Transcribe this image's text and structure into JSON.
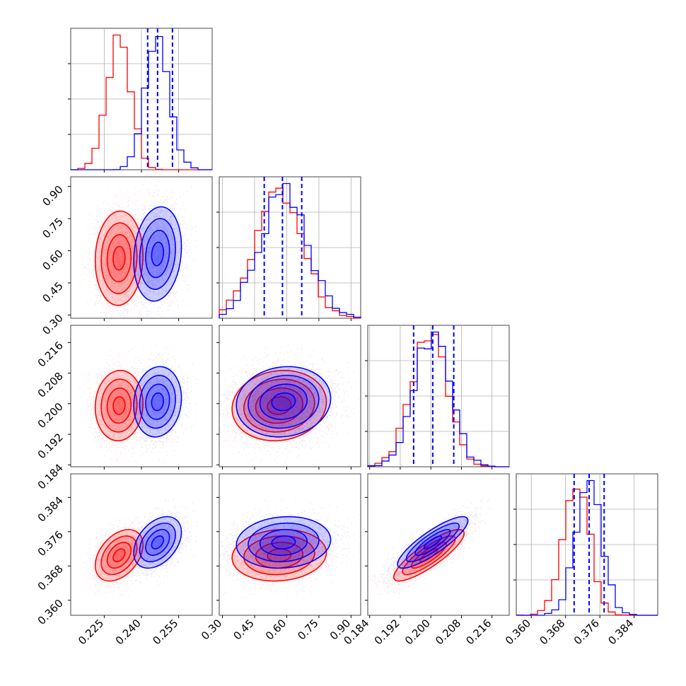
{
  "colors": {
    "series_a": "#ff0000",
    "series_b": "#0000ff",
    "grid": "#b0b0b0",
    "frame": "#444444"
  },
  "chart_data": {
    "type": "corner",
    "grid": true,
    "parameters": [
      {
        "xlim": [
          0.2115,
          0.2685
        ],
        "ylim": null,
        "ticks": [
          0.225,
          0.24,
          0.255
        ],
        "tick_labels": [
          "0.225",
          "0.240",
          "0.255"
        ]
      },
      {
        "xlim": [
          0.285,
          0.945
        ],
        "ylim": [
          0.285,
          0.945
        ],
        "ticks": [
          0.3,
          0.45,
          0.6,
          0.75,
          0.9
        ],
        "tick_labels": [
          "0.30",
          "0.45",
          "0.60",
          "0.75",
          "0.90"
        ]
      },
      {
        "xlim": [
          0.1835,
          0.2205
        ],
        "ylim": [
          0.1835,
          0.2205
        ],
        "ticks": [
          0.184,
          0.192,
          0.2,
          0.208,
          0.216
        ],
        "tick_labels": [
          "0.184",
          "0.192",
          "0.200",
          "0.208",
          "0.216"
        ]
      },
      {
        "xlim": [
          0.3565,
          0.3895
        ],
        "ylim": [
          0.3565,
          0.3895
        ],
        "ticks": [
          0.36,
          0.368,
          0.376,
          0.384
        ],
        "tick_labels": [
          "0.360",
          "0.368",
          "0.376",
          "0.384"
        ]
      }
    ],
    "series": [
      {
        "color": "#ff0000",
        "means": [
          0.231,
          0.565,
          0.1995,
          0.3705
        ],
        "sds": [
          0.0048,
          0.11,
          0.0046,
          0.003
        ],
        "corr": [
          [
            0,
            1,
            0.05
          ],
          [
            0,
            2,
            0.05
          ],
          [
            0,
            3,
            0.4
          ],
          [
            1,
            2,
            0.1
          ],
          [
            1,
            3,
            0.1
          ],
          [
            2,
            3,
            0.85
          ]
        ],
        "quantiles": null
      },
      {
        "color": "#0000ff",
        "means": [
          0.2465,
          0.585,
          0.2005,
          0.3735
        ],
        "sds": [
          0.0048,
          0.11,
          0.0046,
          0.003
        ],
        "corr": [
          [
            0,
            1,
            0.15
          ],
          [
            0,
            2,
            0.1
          ],
          [
            0,
            3,
            0.4
          ],
          [
            1,
            2,
            0.1
          ],
          [
            1,
            3,
            0.1
          ],
          [
            2,
            3,
            0.85
          ]
        ],
        "quantiles": [
          [
            0.2425,
            0.2465,
            0.2525
          ],
          [
            0.495,
            0.58,
            0.67
          ],
          [
            0.1955,
            0.2005,
            0.206
          ],
          [
            0.37,
            0.3735,
            0.377
          ]
        ]
      }
    ],
    "diagonal_max_ticks": [
      null,
      null,
      null,
      null
    ]
  }
}
